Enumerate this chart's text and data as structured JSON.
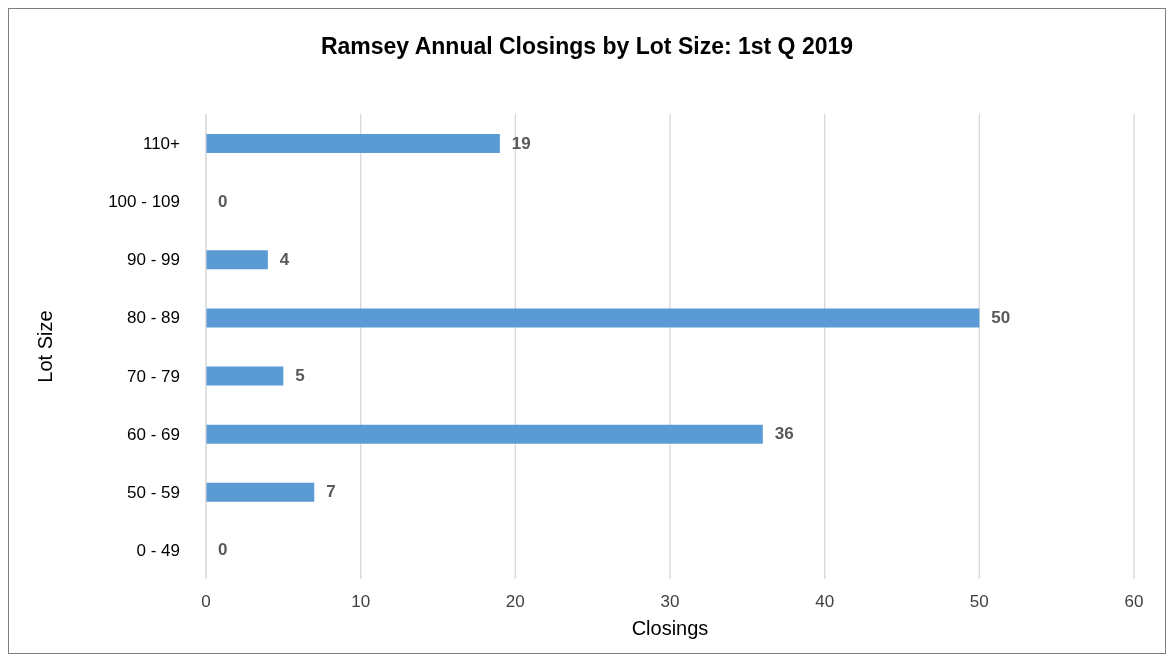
{
  "chart_data": {
    "type": "bar",
    "orientation": "horizontal",
    "title": "Ramsey Annual Closings by Lot Size: 1st Q 2019",
    "xlabel": "Closings",
    "ylabel": "Lot Size",
    "categories": [
      "110+",
      "100 - 109",
      "90 - 99",
      "80 - 89",
      "70 - 79",
      "60 - 69",
      "50 - 59",
      "0 - 49"
    ],
    "values": [
      19,
      0,
      4,
      50,
      5,
      36,
      7,
      0
    ],
    "color": "#5b9bd5",
    "xlim": [
      0,
      60
    ],
    "xticks": [
      0,
      10,
      20,
      30,
      40,
      50,
      60
    ],
    "grid": "x",
    "data_labels": true,
    "legend": false
  }
}
